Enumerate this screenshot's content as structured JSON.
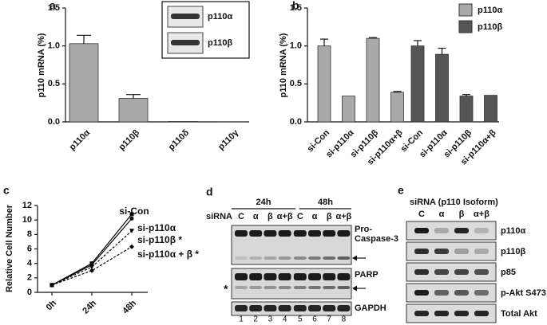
{
  "chart_data": [
    {
      "type": "bar",
      "label": "a",
      "ylabel": "p110 mRNA (%)",
      "categories": [
        "p110α",
        "p110β",
        "p110δ",
        "p110γ"
      ],
      "values": [
        1.03,
        0.31,
        0.005,
        0.002
      ],
      "errors": [
        0.11,
        0.05,
        0,
        0
      ],
      "color": "#a9a9a9",
      "ylim": [
        0,
        1.5
      ],
      "yticks": [
        {
          "value": 0,
          "label": "0.0"
        },
        {
          "value": 0.5,
          "label": "0.5"
        },
        {
          "value": 1,
          "label": "1.0"
        },
        {
          "value": 1.5,
          "label": "1.5"
        }
      ],
      "inset": [
        "p110α",
        "p110β"
      ]
    },
    {
      "type": "grouped_bar",
      "label": "b",
      "ylabel": "p110 mRNA (%)",
      "categories": [
        "si-Con",
        "si-p110α",
        "si-p110β",
        "si-p110α+β"
      ],
      "series": [
        {
          "name": "p110α",
          "color": "#a9a9a9",
          "values": [
            1.0,
            0.34,
            1.1,
            0.39
          ],
          "errors": [
            0.09,
            0,
            0.01,
            0.01
          ]
        },
        {
          "name": "p110β",
          "color": "#555555",
          "values": [
            1.0,
            0.89,
            0.34,
            0.35
          ],
          "errors": [
            0.07,
            0.08,
            0.02,
            0
          ]
        }
      ],
      "ylim": [
        0,
        1.5
      ],
      "yticks": [
        {
          "value": 0,
          "label": "0.0"
        },
        {
          "value": 0.5,
          "label": "0.5"
        },
        {
          "value": 1,
          "label": "1.0"
        },
        {
          "value": 1.5,
          "label": "1.5"
        }
      ],
      "legend": "top-right"
    },
    {
      "type": "line",
      "label": "c",
      "ylabel": "Relative Cell Number",
      "categories": [
        "0h",
        "24h",
        "48h"
      ],
      "series": [
        {
          "name": "si-Con",
          "color": "#000000",
          "linestyle": "solid",
          "marker": "square",
          "values": [
            1,
            4.0,
            10.8
          ]
        },
        {
          "name": "si-p110α",
          "color": "#000000",
          "linestyle": "solid",
          "marker": "circle",
          "values": [
            1,
            3.8,
            10.2
          ]
        },
        {
          "name": "si-p110β *",
          "color": "#000000",
          "linestyle": "dashed",
          "marker": "triangle",
          "values": [
            1,
            3.5,
            8.5
          ]
        },
        {
          "name": "si-p110α + β *",
          "color": "#000000",
          "linestyle": "dashed",
          "marker": "diamond",
          "values": [
            1,
            3.0,
            6.3
          ]
        }
      ],
      "ylim": [
        0,
        12
      ],
      "yticks": [
        0,
        2,
        4,
        6,
        8,
        10,
        12
      ]
    }
  ],
  "blot_d": {
    "label": "d",
    "times": [
      "24h",
      "48h"
    ],
    "row_label": "siRNA",
    "lanes": [
      "C",
      "α",
      "β",
      "α+β",
      "C",
      "α",
      "β",
      "α+β"
    ],
    "lane_numbers": [
      1,
      2,
      3,
      4,
      5,
      6,
      7,
      8
    ],
    "proteins": [
      "Pro-",
      "Caspase-3",
      "PARP",
      "GAPDH"
    ],
    "star": "*"
  },
  "blot_e": {
    "label": "e",
    "title": "siRNA (p110 Isoform)",
    "lanes": [
      "C",
      "α",
      "β",
      "α+β"
    ],
    "proteins": [
      "p110α",
      "p110β",
      "p85",
      "p-Akt S473",
      "Total Akt"
    ]
  }
}
